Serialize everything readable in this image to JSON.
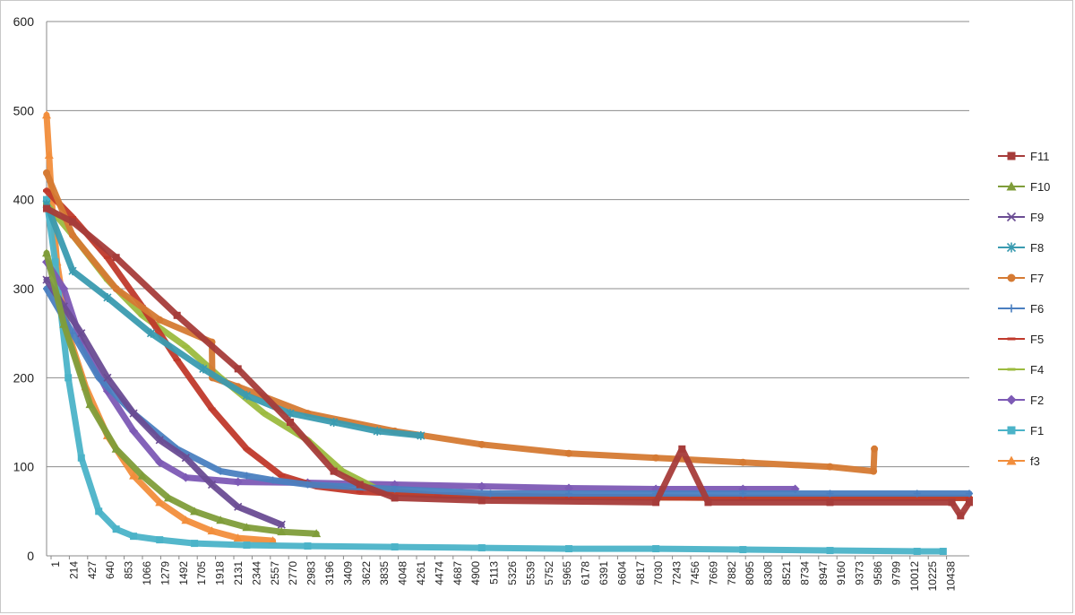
{
  "chart_data": {
    "type": "line",
    "title": "",
    "xlabel": "",
    "ylabel": "",
    "ylim": [
      0,
      600
    ],
    "yticks": [
      0,
      100,
      200,
      300,
      400,
      500,
      600
    ],
    "xlim": [
      1,
      10600
    ],
    "xticks": [
      "1",
      "214",
      "427",
      "640",
      "853",
      "1066",
      "1279",
      "1492",
      "1705",
      "1918",
      "2131",
      "2344",
      "2557",
      "2770",
      "2983",
      "3196",
      "3409",
      "3622",
      "3835",
      "4048",
      "4261",
      "4474",
      "4687",
      "4900",
      "5113",
      "5326",
      "5539",
      "5752",
      "5965",
      "6178",
      "6391",
      "6604",
      "6817",
      "7030",
      "7243",
      "7456",
      "7669",
      "7882",
      "8095",
      "8308",
      "8521",
      "8734",
      "8947",
      "9160",
      "9373",
      "9586",
      "9799",
      "10012",
      "10225",
      "10438"
    ],
    "grid": true,
    "legend_position": "right",
    "series": [
      {
        "name": "F11",
        "color": "#a63c3a",
        "marker": "square",
        "x": [
          1,
          300,
          800,
          1500,
          2200,
          2800,
          3300,
          3600,
          4000,
          5000,
          7000,
          7300,
          7600,
          9000,
          10400,
          10500,
          10600
        ],
        "y": [
          390,
          375,
          335,
          270,
          210,
          150,
          95,
          80,
          65,
          62,
          60,
          120,
          60,
          60,
          60,
          45,
          60
        ]
      },
      {
        "name": "F10",
        "color": "#7f9d3a",
        "marker": "triangle",
        "x": [
          1,
          200,
          500,
          800,
          1100,
          1400,
          1700,
          2000,
          2300,
          2700,
          3100
        ],
        "y": [
          340,
          260,
          170,
          120,
          90,
          65,
          50,
          40,
          32,
          27,
          25
        ]
      },
      {
        "name": "F9",
        "color": "#6a4c93",
        "marker": "x",
        "x": [
          1,
          200,
          400,
          700,
          1000,
          1300,
          1600,
          1900,
          2200,
          2700
        ],
        "y": [
          310,
          280,
          250,
          200,
          160,
          130,
          110,
          80,
          55,
          35
        ]
      },
      {
        "name": "F8",
        "color": "#3a9bb0",
        "marker": "star",
        "x": [
          1,
          300,
          700,
          1200,
          1800,
          2300,
          2800,
          3300,
          3800,
          4300
        ],
        "y": [
          395,
          320,
          290,
          250,
          210,
          180,
          160,
          150,
          140,
          135
        ]
      },
      {
        "name": "F7",
        "color": "#d57a33",
        "marker": "circle",
        "x": [
          1,
          300,
          800,
          1300,
          1900,
          1905,
          2200,
          3000,
          4000,
          5000,
          6000,
          7000,
          8000,
          9000,
          9500,
          9510
        ],
        "y": [
          430,
          360,
          300,
          265,
          240,
          200,
          190,
          160,
          140,
          125,
          115,
          110,
          105,
          100,
          95,
          120
        ]
      },
      {
        "name": "F6",
        "color": "#4a7fc0",
        "marker": "plus",
        "x": [
          1,
          300,
          600,
          1000,
          1500,
          2000,
          2300,
          2600,
          3000,
          4000,
          5100,
          6000,
          7000,
          8000,
          9000,
          10000,
          10600
        ],
        "y": [
          300,
          250,
          200,
          160,
          120,
          95,
          90,
          85,
          80,
          75,
          70,
          70,
          70,
          70,
          70,
          70,
          70
        ]
      },
      {
        "name": "F5",
        "color": "#c0392b",
        "marker": "dash",
        "x": [
          1,
          300,
          700,
          1100,
          1500,
          1900,
          2300,
          2700,
          3100,
          3600,
          4500,
          6000,
          8000,
          10600
        ],
        "y": [
          410,
          380,
          335,
          280,
          220,
          165,
          120,
          90,
          78,
          72,
          68,
          66,
          65,
          65
        ]
      },
      {
        "name": "F4",
        "color": "#9cbb3f",
        "marker": "dash",
        "x": [
          1,
          300,
          700,
          1100,
          1600,
          2000,
          2500,
          3000,
          3400,
          3800,
          4500,
          6000,
          8000,
          10600
        ],
        "y": [
          395,
          360,
          310,
          270,
          235,
          200,
          160,
          130,
          95,
          75,
          68,
          66,
          65,
          65
        ]
      },
      {
        "name": "F2",
        "color": "#7d5ab5",
        "marker": "diamond",
        "x": [
          1,
          200,
          400,
          700,
          1000,
          1300,
          1600,
          2200,
          3000,
          4000,
          5000,
          6000,
          7000,
          8000,
          8600
        ],
        "y": [
          330,
          300,
          240,
          185,
          140,
          105,
          88,
          83,
          82,
          80,
          78,
          76,
          75,
          75,
          75
        ]
      },
      {
        "name": "F1",
        "color": "#4bb3c8",
        "marker": "square",
        "x": [
          1,
          100,
          250,
          400,
          600,
          800,
          1000,
          1300,
          1700,
          2300,
          3000,
          4000,
          5000,
          6000,
          7000,
          8000,
          9000,
          10000,
          10300
        ],
        "y": [
          400,
          330,
          200,
          110,
          50,
          30,
          22,
          18,
          14,
          12,
          11,
          10,
          9,
          8,
          8,
          7,
          6,
          5,
          5
        ]
      },
      {
        "name": "f3",
        "color": "#f28e3c",
        "marker": "triangle",
        "x": [
          1,
          30,
          60,
          120,
          250,
          450,
          700,
          1000,
          1300,
          1600,
          1900,
          2200,
          2600
        ],
        "y": [
          495,
          450,
          400,
          330,
          250,
          190,
          135,
          90,
          60,
          40,
          28,
          20,
          17
        ]
      }
    ]
  }
}
